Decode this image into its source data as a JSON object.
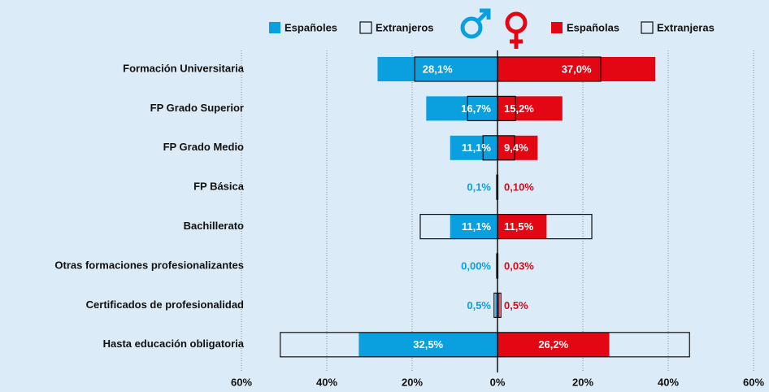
{
  "chart_data": {
    "type": "butterfly",
    "categories": [
      "Formación Universitaria",
      "FP Grado Superior",
      "FP Grado Medio",
      "FP Básica",
      "Bachillerato",
      "Otras formaciones profesionalizantes",
      "Certificados de profesionalidad",
      "Hasta educación obligatoria"
    ],
    "series": [
      {
        "name": "Españoles",
        "side": "left",
        "color": "#0aa0e0",
        "filled": true,
        "values": [
          28.1,
          16.7,
          11.1,
          0.1,
          11.1,
          0.0,
          0.5,
          32.5
        ],
        "value_labels": [
          "28,1%",
          "16,7%",
          "11,1%",
          "0,1%",
          "11,1%",
          "0,00%",
          "0,5%",
          "32,5%"
        ]
      },
      {
        "name": "Extranjeros",
        "side": "left",
        "color": "#111111",
        "filled": false,
        "values": [
          19.4,
          7.0,
          3.4,
          0.2,
          18.1,
          0.2,
          0.8,
          50.9
        ]
      },
      {
        "name": "Españolas",
        "side": "right",
        "color": "#e30613",
        "filled": true,
        "values": [
          37.0,
          15.2,
          9.4,
          0.1,
          11.5,
          0.03,
          0.5,
          26.2
        ],
        "value_labels": [
          "37,0%",
          "15,2%",
          "9,4%",
          "0,10%",
          "11,5%",
          "0,03%",
          "0,5%",
          "26,2%"
        ]
      },
      {
        "name": "Extranjeras",
        "side": "right",
        "color": "#111111",
        "filled": false,
        "values": [
          24.2,
          4.2,
          4.0,
          0.1,
          22.1,
          0.1,
          0.8,
          45.0
        ]
      }
    ],
    "xlim": [
      0,
      60
    ],
    "xticks": [
      {
        "value": 0,
        "label": "0%"
      },
      {
        "value": 20,
        "label": "20%"
      },
      {
        "value": 40,
        "label": "40%"
      },
      {
        "value": 60,
        "label": "60%"
      }
    ],
    "grid": true
  }
}
